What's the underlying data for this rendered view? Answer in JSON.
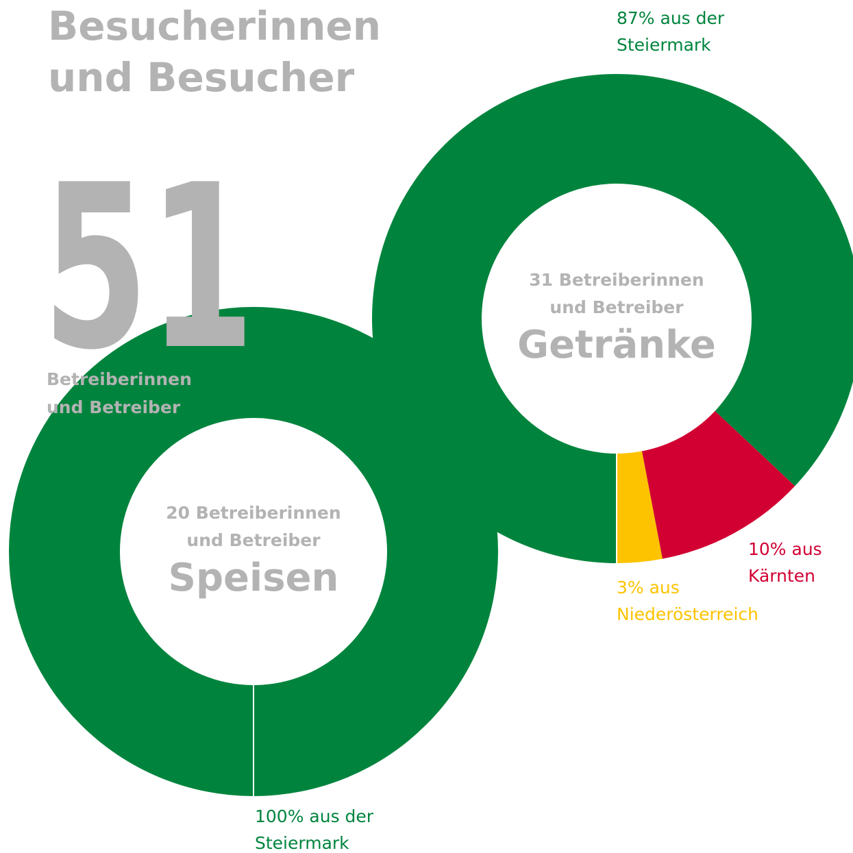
{
  "title": [
    "Besucherinnen",
    "und Besucher"
  ],
  "total": 51,
  "total_label": [
    "Betreiberinnen",
    "und Betreiber"
  ],
  "chart_data": [
    {
      "type": "donut",
      "center_lines": [
        "20 Betreiberinnen",
        "und Betreiber"
      ],
      "center_title": "Speisen",
      "values": [
        100
      ],
      "colors": [
        "#00843d"
      ],
      "labels": [
        [
          "100% aus der",
          "Steiermark"
        ]
      ]
    },
    {
      "type": "donut",
      "center_lines": [
        "31 Betreiberinnen",
        "und Betreiber"
      ],
      "center_title": "Getränke",
      "values": [
        87,
        10,
        3
      ],
      "colors": [
        "#00843d",
        "#d20032",
        "#fdc300"
      ],
      "labels": [
        [
          "87% aus der",
          "Steiermark"
        ],
        [
          "10% aus",
          "Kärnten"
        ],
        [
          "3% aus",
          "Niederösterreich"
        ]
      ]
    }
  ]
}
